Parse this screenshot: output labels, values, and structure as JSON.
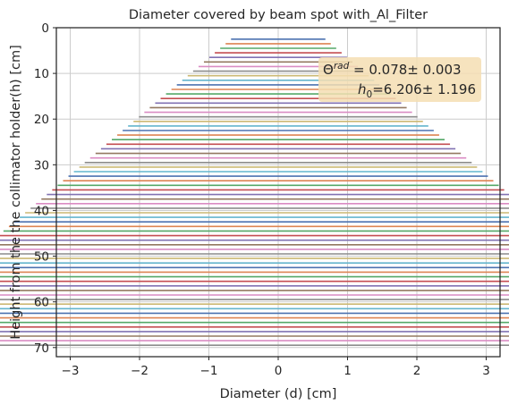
{
  "chart_data": {
    "type": "line",
    "title": "Diameter covered by beam spot with_Al_Filter",
    "xlabel": "Diameter (d) [cm]",
    "ylabel": "Height from the the collimator holder(h) [cm]",
    "xlim": [
      -3.2,
      3.2
    ],
    "ylim": [
      72,
      0
    ],
    "y_inverted": true,
    "xticks": [
      -3,
      -2,
      -1,
      0,
      1,
      2,
      3
    ],
    "yticks": [
      0,
      10,
      20,
      30,
      40,
      50,
      60,
      70
    ],
    "grid": true,
    "annotation": {
      "theta_label": "Θ",
      "theta_sup": "rad",
      "theta_value": " = 0.078± 0.003",
      "h_label": "h",
      "h_sub": "0",
      "h_value": "=6.206± 1.196",
      "placement": "top-right",
      "box_color": "#f5deb3"
    },
    "segments": {
      "description_model": "horizontal segments from -d/2 to +d/2 at each height h",
      "h_start": 2.5,
      "h_step": 1,
      "h_count": 68,
      "theta_rad": 0.078,
      "h0": 6.206
    },
    "palette": [
      "#4c72b0",
      "#dd8452",
      "#55a868",
      "#c44e52",
      "#8172b3",
      "#937860",
      "#da8bc3",
      "#8c8c8c",
      "#ccb974",
      "#64b5cd"
    ]
  }
}
